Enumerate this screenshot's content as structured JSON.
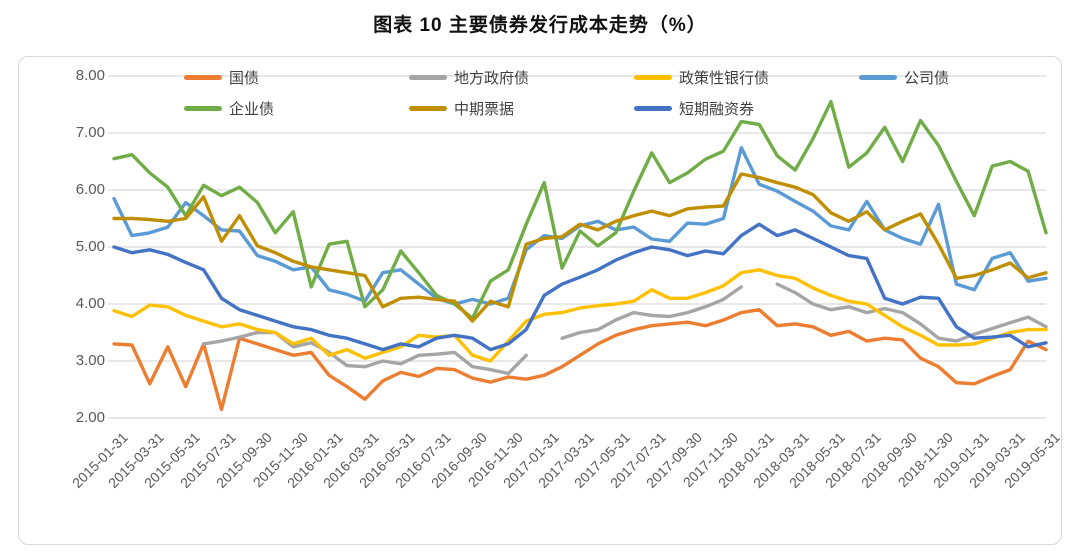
{
  "title": "图表 10 主要债券发行成本走势（%）",
  "chart_data": {
    "type": "line",
    "title": "图表 10 主要债券发行成本走势（%）",
    "xlabel": "",
    "ylabel": "",
    "grid": true,
    "legend_position": "top",
    "y_axis": {
      "min": 2,
      "max": 8,
      "step": 1,
      "tick_labels": [
        "8.00",
        "7.00",
        "6.00",
        "5.00",
        "4.00",
        "3.00",
        "2.00"
      ]
    },
    "x_labels": [
      "2015-01-31",
      "2015-03-31",
      "2015-05-31",
      "2015-07-31",
      "2015-09-30",
      "2015-11-30",
      "2016-01-31",
      "2016-03-31",
      "2016-05-31",
      "2016-07-31",
      "2016-09-30",
      "2016-11-30",
      "2017-01-31",
      "2017-03-31",
      "2017-05-31",
      "2017-07-31",
      "2017-09-30",
      "2017-11-30",
      "2018-01-31",
      "2018-03-31",
      "2018-05-31",
      "2018-07-31",
      "2018-09-30",
      "2018-11-30",
      "2019-01-31",
      "2019-03-31",
      "2019-05-31"
    ],
    "x_label_every": 2,
    "months": 53,
    "series": [
      {
        "name": "国债",
        "color": "#ED7D31",
        "values": [
          3.3,
          3.28,
          2.6,
          3.25,
          2.55,
          3.3,
          2.15,
          3.4,
          3.3,
          3.2,
          3.1,
          3.15,
          2.75,
          2.55,
          2.33,
          2.65,
          2.8,
          2.73,
          2.87,
          2.85,
          2.7,
          2.63,
          2.72,
          2.68,
          2.75,
          2.9,
          3.1,
          3.3,
          3.45,
          3.55,
          3.62,
          3.65,
          3.68,
          3.62,
          3.72,
          3.85,
          3.9,
          3.62,
          3.65,
          3.6,
          3.45,
          3.52,
          3.35,
          3.4,
          3.37,
          3.05,
          2.9,
          2.62,
          2.6,
          2.73,
          2.85,
          3.35,
          3.2
        ]
      },
      {
        "name": "地方政府债",
        "color": "#A5A5A5",
        "values": [
          null,
          null,
          null,
          null,
          null,
          3.3,
          3.35,
          3.42,
          3.5,
          3.5,
          3.25,
          3.32,
          3.15,
          2.92,
          2.9,
          3.0,
          2.95,
          3.1,
          3.12,
          3.15,
          2.9,
          2.85,
          2.78,
          3.1,
          null,
          3.4,
          3.5,
          3.55,
          3.72,
          3.85,
          3.8,
          3.78,
          3.85,
          3.95,
          4.08,
          4.3,
          null,
          4.35,
          4.2,
          4.0,
          3.9,
          3.95,
          3.85,
          3.92,
          3.85,
          3.65,
          3.4,
          3.35,
          3.47,
          3.57,
          3.67,
          3.77,
          3.6
        ]
      },
      {
        "name": "政策性银行债",
        "color": "#FFC000",
        "values": [
          3.88,
          3.78,
          3.98,
          3.95,
          3.8,
          3.7,
          3.6,
          3.65,
          3.55,
          3.5,
          3.3,
          3.4,
          3.1,
          3.2,
          3.05,
          3.15,
          3.25,
          3.45,
          3.42,
          3.45,
          3.1,
          3.0,
          3.35,
          3.7,
          3.82,
          3.85,
          3.93,
          3.97,
          4.0,
          4.05,
          4.25,
          4.1,
          4.1,
          4.2,
          4.32,
          4.55,
          4.6,
          4.5,
          4.45,
          4.28,
          4.15,
          4.05,
          4.0,
          3.8,
          3.6,
          3.45,
          3.28,
          3.28,
          3.3,
          3.4,
          3.5,
          3.55,
          3.55
        ]
      },
      {
        "name": "公司债",
        "color": "#5B9BD5",
        "values": [
          5.85,
          5.2,
          5.25,
          5.35,
          5.78,
          5.55,
          5.3,
          5.28,
          4.85,
          4.75,
          4.6,
          4.65,
          4.25,
          4.17,
          4.05,
          4.55,
          4.6,
          4.35,
          4.1,
          4.0,
          4.08,
          4.0,
          4.1,
          4.95,
          5.2,
          5.15,
          5.37,
          5.45,
          5.3,
          5.35,
          5.14,
          5.1,
          5.42,
          5.4,
          5.5,
          6.74,
          6.1,
          5.98,
          5.8,
          5.63,
          5.37,
          5.3,
          5.8,
          5.3,
          5.15,
          5.05,
          5.75,
          4.35,
          4.25,
          4.8,
          4.9,
          4.4,
          4.45
        ]
      },
      {
        "name": "企业债",
        "color": "#70AD47",
        "values": [
          6.55,
          6.62,
          6.3,
          6.05,
          5.55,
          6.08,
          5.9,
          6.05,
          5.78,
          5.25,
          5.62,
          4.3,
          5.05,
          5.1,
          3.95,
          4.25,
          4.93,
          4.55,
          4.15,
          4.0,
          3.75,
          4.4,
          4.6,
          5.4,
          6.13,
          4.63,
          5.28,
          5.02,
          5.25,
          5.98,
          6.65,
          6.13,
          6.3,
          6.54,
          6.68,
          7.2,
          7.15,
          6.6,
          6.35,
          6.9,
          7.55,
          6.4,
          6.65,
          7.1,
          6.5,
          7.22,
          6.78,
          6.15,
          5.55,
          6.42,
          6.5,
          6.33,
          5.25
        ]
      },
      {
        "name": "中期票据",
        "color": "#BF8F00",
        "values": [
          5.5,
          5.5,
          5.48,
          5.45,
          5.5,
          5.88,
          5.1,
          5.55,
          5.02,
          4.9,
          4.75,
          4.65,
          4.6,
          4.55,
          4.5,
          3.95,
          4.1,
          4.12,
          4.08,
          4.05,
          3.7,
          4.05,
          3.95,
          5.05,
          5.15,
          5.18,
          5.4,
          5.3,
          5.45,
          5.55,
          5.63,
          5.55,
          5.67,
          5.7,
          5.72,
          6.28,
          6.22,
          6.13,
          6.05,
          5.92,
          5.6,
          5.45,
          5.62,
          5.3,
          5.45,
          5.58,
          5.05,
          4.45,
          4.5,
          4.6,
          4.72,
          4.46,
          4.55
        ]
      },
      {
        "name": "短期融资券",
        "color": "#4472C4",
        "values": [
          5.0,
          4.9,
          4.95,
          4.87,
          4.73,
          4.6,
          4.1,
          3.9,
          3.8,
          3.7,
          3.6,
          3.55,
          3.45,
          3.4,
          3.3,
          3.2,
          3.3,
          3.25,
          3.4,
          3.45,
          3.4,
          3.2,
          3.3,
          3.55,
          4.15,
          4.35,
          4.47,
          4.6,
          4.77,
          4.9,
          5.0,
          4.95,
          4.85,
          4.93,
          4.88,
          5.2,
          5.4,
          5.2,
          5.3,
          5.15,
          5.0,
          4.85,
          4.8,
          4.1,
          4.0,
          4.12,
          4.1,
          3.6,
          3.4,
          3.42,
          3.45,
          3.25,
          3.32
        ]
      }
    ]
  },
  "style": {
    "gridline_color": "#d9d9d9",
    "axis_text_color": "#595959",
    "frame_border_color": "#d9d9d9"
  }
}
